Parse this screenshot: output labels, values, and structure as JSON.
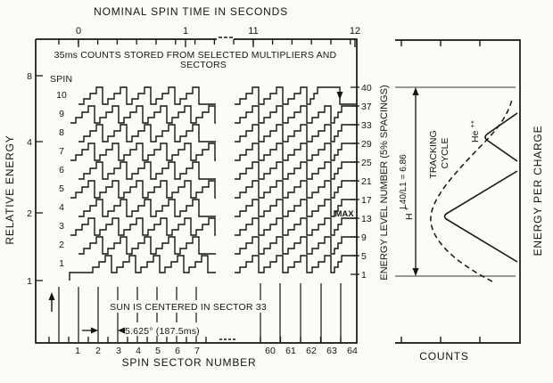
{
  "figure": {
    "title": "NOMINAL SPIN TIME IN SECONDS",
    "top_axis": {
      "tick_labels": [
        "0",
        "1",
        "11",
        "12"
      ]
    },
    "main_panel": {
      "note_line1": "35ms COUNTS STORED FROM SELECTED MULTIPLIERS AND",
      "note_line2": "SECTORS",
      "spin_header": "SPIN",
      "spin_numbers": [
        "10",
        "9",
        "8",
        "7",
        "6",
        "5",
        "4",
        "3",
        "2",
        "1"
      ],
      "y_axis_label": "RELATIVE ENERGY",
      "y_tick_labels": [
        "8",
        "4",
        "2",
        "1"
      ],
      "energy_axis_label": "ENERGY LEVEL NUMBER (5% SPACINGS)",
      "energy_levels": [
        "40",
        "37",
        "33",
        "29",
        "25",
        "21",
        "17",
        "13",
        "9",
        "5",
        "1"
      ],
      "max_label": "MAX",
      "sun_note": "SUN IS CENTERED IN SECTOR 33",
      "sector_width_note": "5.625° (187.5ms)",
      "sector_numbers_left": [
        "1",
        "2",
        "3",
        "4",
        "5",
        "6",
        "7"
      ],
      "sector_numbers_right": [
        "60",
        "61",
        "62",
        "63",
        "64"
      ],
      "x_axis_label": "SPIN SECTOR NUMBER"
    },
    "right_panel": {
      "ratio_label": "L40/L1 = 6.86",
      "tracking_line1": "TRACKING",
      "tracking_line2": "CYCLE",
      "proton_label": "H",
      "proton_sup": "+",
      "helium_label": "He",
      "helium_sup": "++",
      "y_axis_label": "ENERGY PER CHARGE",
      "x_axis_label": "COUNTS"
    }
  }
}
